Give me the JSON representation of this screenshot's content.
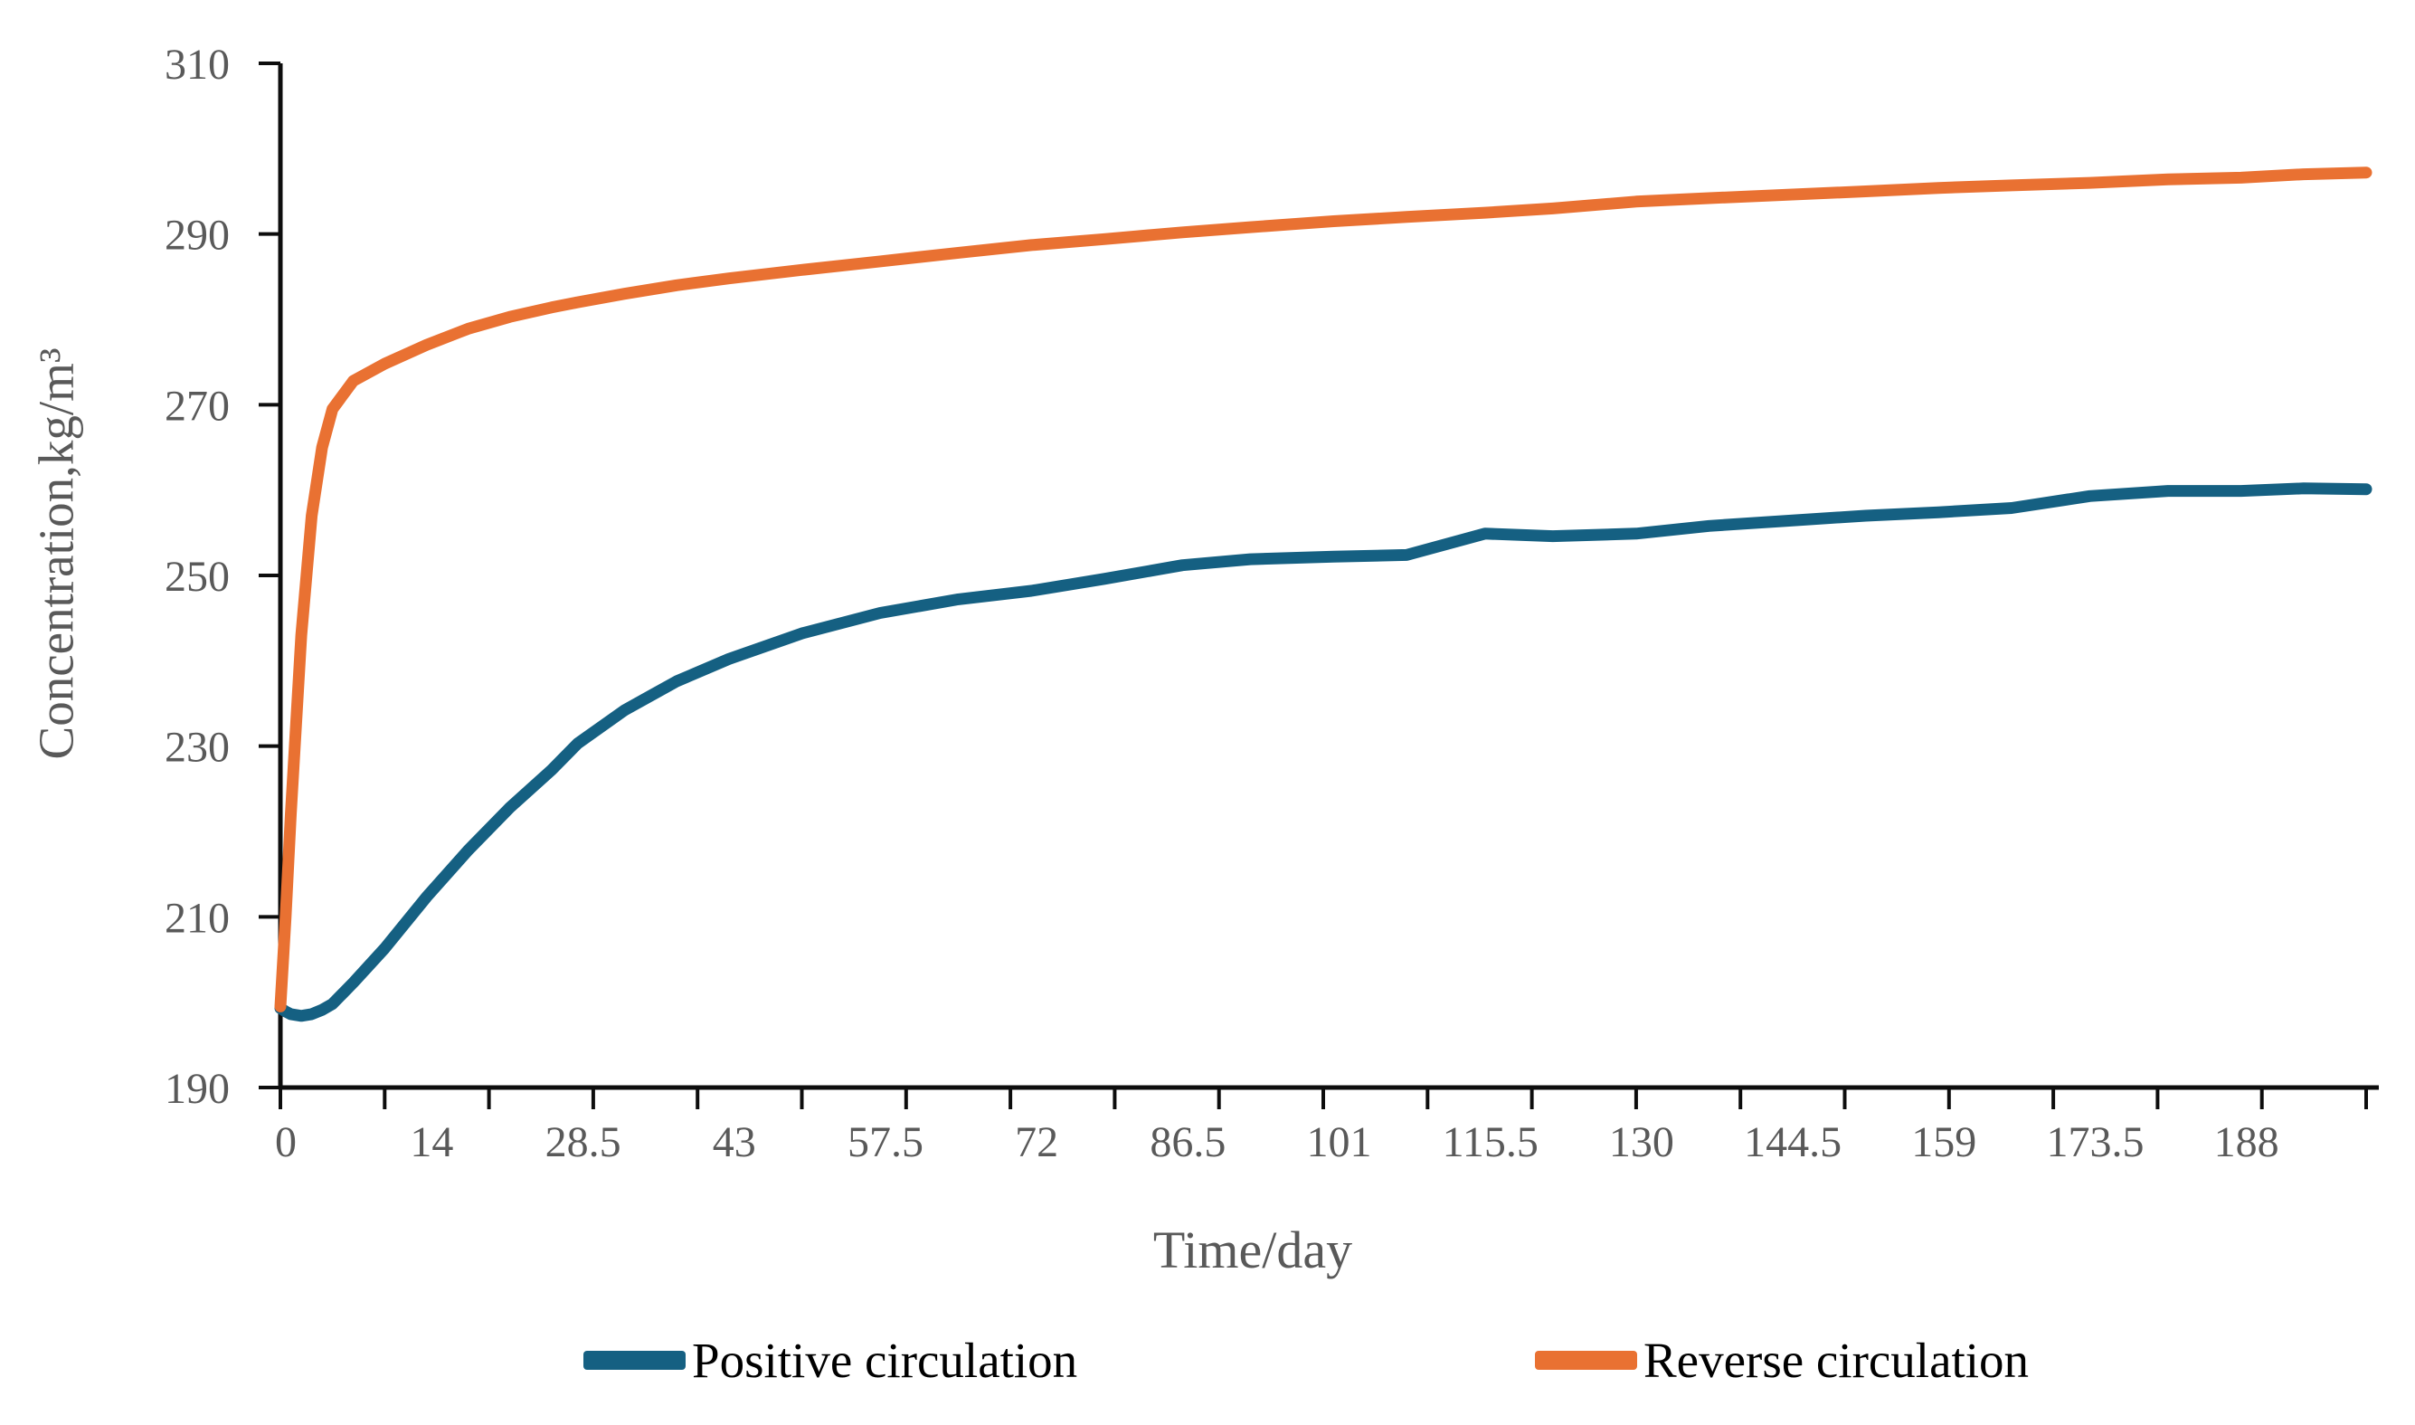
{
  "chart_data": {
    "type": "line",
    "title": "",
    "xlabel": "Time/day",
    "ylabel": "Concentration,kg/m³",
    "x_range": [
      0,
      200
    ],
    "y_axis_range": [
      190,
      310
    ],
    "y_ticks": [
      190,
      200,
      210,
      220,
      230,
      240,
      250,
      260,
      270,
      280,
      290,
      300,
      310
    ],
    "y_labeled_ticks": [
      190,
      210,
      230,
      250,
      270,
      290,
      310
    ],
    "x_minor_tick_step": 10,
    "x_tick_labels": [
      0,
      14,
      28.5,
      43,
      57.5,
      72,
      86.5,
      101,
      115.5,
      130,
      144.5,
      159,
      173.5,
      188
    ],
    "grid": false,
    "legend_position": "bottom",
    "axis_color": "#0d0d0d",
    "tick_label_color": "#595959",
    "line_width": 13,
    "x": [
      0,
      0.5,
      1,
      2,
      3,
      4,
      5,
      7,
      10,
      14,
      18,
      22,
      26,
      28.5,
      33,
      38,
      43,
      50,
      57.5,
      65,
      72,
      79,
      86.5,
      93,
      101,
      108,
      115.5,
      122,
      130,
      137,
      144.5,
      152,
      159,
      166,
      173.5,
      181,
      188,
      194,
      200
    ],
    "series": [
      {
        "name": "Positive circulation",
        "color": "#156082",
        "values": [
          199.3,
          198.9,
          198.6,
          198.4,
          198.6,
          199.1,
          199.8,
          202.3,
          206.3,
          212.3,
          217.8,
          222.8,
          227.2,
          230.3,
          234.2,
          237.6,
          240.2,
          243.2,
          245.6,
          247.2,
          248.2,
          249.6,
          251.2,
          251.9,
          252.2,
          252.4,
          254.9,
          254.6,
          254.9,
          255.8,
          256.4,
          257.0,
          257.4,
          257.9,
          259.3,
          259.9,
          259.9,
          260.2,
          260.1
        ]
      },
      {
        "name": "Reverse circulation",
        "color": "#E97132",
        "values": [
          199.5,
          210.0,
          222.0,
          243.0,
          257.0,
          265.0,
          269.5,
          272.8,
          274.8,
          277.0,
          278.9,
          280.3,
          281.4,
          282.0,
          283.0,
          284.0,
          284.8,
          285.8,
          286.8,
          287.8,
          288.7,
          289.4,
          290.2,
          290.8,
          291.5,
          292.0,
          292.5,
          293.0,
          293.8,
          294.2,
          294.6,
          295.0,
          295.4,
          295.7,
          296.0,
          296.4,
          296.6,
          297.0,
          297.2
        ]
      }
    ]
  }
}
